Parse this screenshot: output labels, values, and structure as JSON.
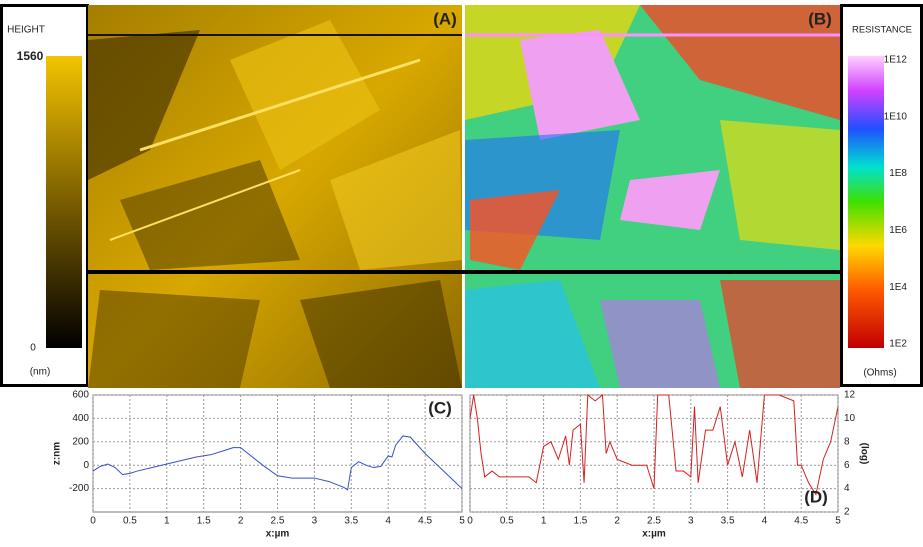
{
  "height_bar": {
    "title": "HEIGHT",
    "top": "1560",
    "bottom": "0",
    "unit": "(nm)"
  },
  "resistance_bar": {
    "title": "RESISTANCE",
    "labels": [
      "1E12",
      "1E10",
      "1E8",
      "1E6",
      "1E4",
      "1E2"
    ],
    "unit": "(Ohms)"
  },
  "image_labels": [
    "(A)",
    "(B)"
  ],
  "chart_data": [
    {
      "type": "line",
      "label": "(C)",
      "xlabel": "x:µm",
      "ylabel": "z:nm",
      "color": "#3a4fc8",
      "grid": true,
      "x": [
        0,
        0.1,
        0.2,
        0.3,
        0.4,
        0.5,
        0.6,
        0.8,
        1,
        1.2,
        1.4,
        1.6,
        1.8,
        1.9,
        2,
        2.1,
        2.3,
        2.5,
        2.7,
        3,
        3.2,
        3.4,
        3.45,
        3.5,
        3.6,
        3.7,
        3.8,
        3.9,
        4,
        4.05,
        4.1,
        4.2,
        4.3,
        4.5,
        4.7,
        5
      ],
      "values": [
        -50,
        -10,
        10,
        -20,
        -80,
        -70,
        -50,
        -20,
        10,
        40,
        70,
        90,
        130,
        150,
        150,
        100,
        0,
        -90,
        -110,
        -110,
        -140,
        -190,
        -210,
        -20,
        30,
        0,
        -20,
        -10,
        80,
        70,
        170,
        250,
        240,
        100,
        -20,
        -200
      ],
      "xlim": [
        0,
        5
      ],
      "xticks": [
        0,
        0.5,
        1,
        1.5,
        2,
        2.5,
        3,
        3.5,
        4,
        4.5,
        5
      ],
      "ylim": [
        -400,
        600
      ],
      "yticks": [
        600,
        400,
        200,
        0,
        -200
      ]
    },
    {
      "type": "line",
      "label": "(D)",
      "xlabel": "x:µm",
      "y2label": "(log)",
      "grid": true,
      "x": [
        0,
        0.05,
        0.1,
        0.15,
        0.2,
        0.3,
        0.4,
        0.6,
        0.8,
        0.9,
        1,
        1.1,
        1.2,
        1.3,
        1.35,
        1.4,
        1.5,
        1.55,
        1.6,
        1.7,
        1.8,
        1.85,
        1.9,
        2,
        2.2,
        2.4,
        2.5,
        2.55,
        2.7,
        2.8,
        2.9,
        3,
        3.05,
        3.1,
        3.2,
        3.3,
        3.4,
        3.5,
        3.6,
        3.7,
        3.8,
        3.9,
        4,
        4.2,
        4.4,
        4.45,
        4.5,
        4.6,
        4.7,
        4.8,
        4.9,
        5
      ],
      "series": [
        {
          "axis": "y2",
          "color": "#d62020",
          "values": [
            10,
            12,
            10,
            7,
            5,
            5.5,
            5,
            5,
            5,
            4.5,
            7.6,
            8,
            6.5,
            8.5,
            6,
            9,
            9.5,
            4.5,
            12,
            11.5,
            12,
            7,
            8,
            6.5,
            6,
            6,
            4,
            12,
            12,
            5.5,
            5.5,
            5,
            11,
            4.5,
            9,
            9,
            11,
            6,
            8,
            5,
            9,
            4.5,
            12,
            12,
            11.5,
            6,
            6,
            4.5,
            3.5,
            6.5,
            8,
            11
          ]
        }
      ],
      "xlim": [
        0,
        5
      ],
      "xticks": [
        0,
        0.5,
        1,
        1.5,
        2,
        2.5,
        3,
        3.5,
        4,
        4.5,
        5
      ],
      "y2lim": [
        2,
        12
      ],
      "y2ticks": [
        12,
        10,
        8,
        6,
        4,
        2
      ]
    }
  ]
}
